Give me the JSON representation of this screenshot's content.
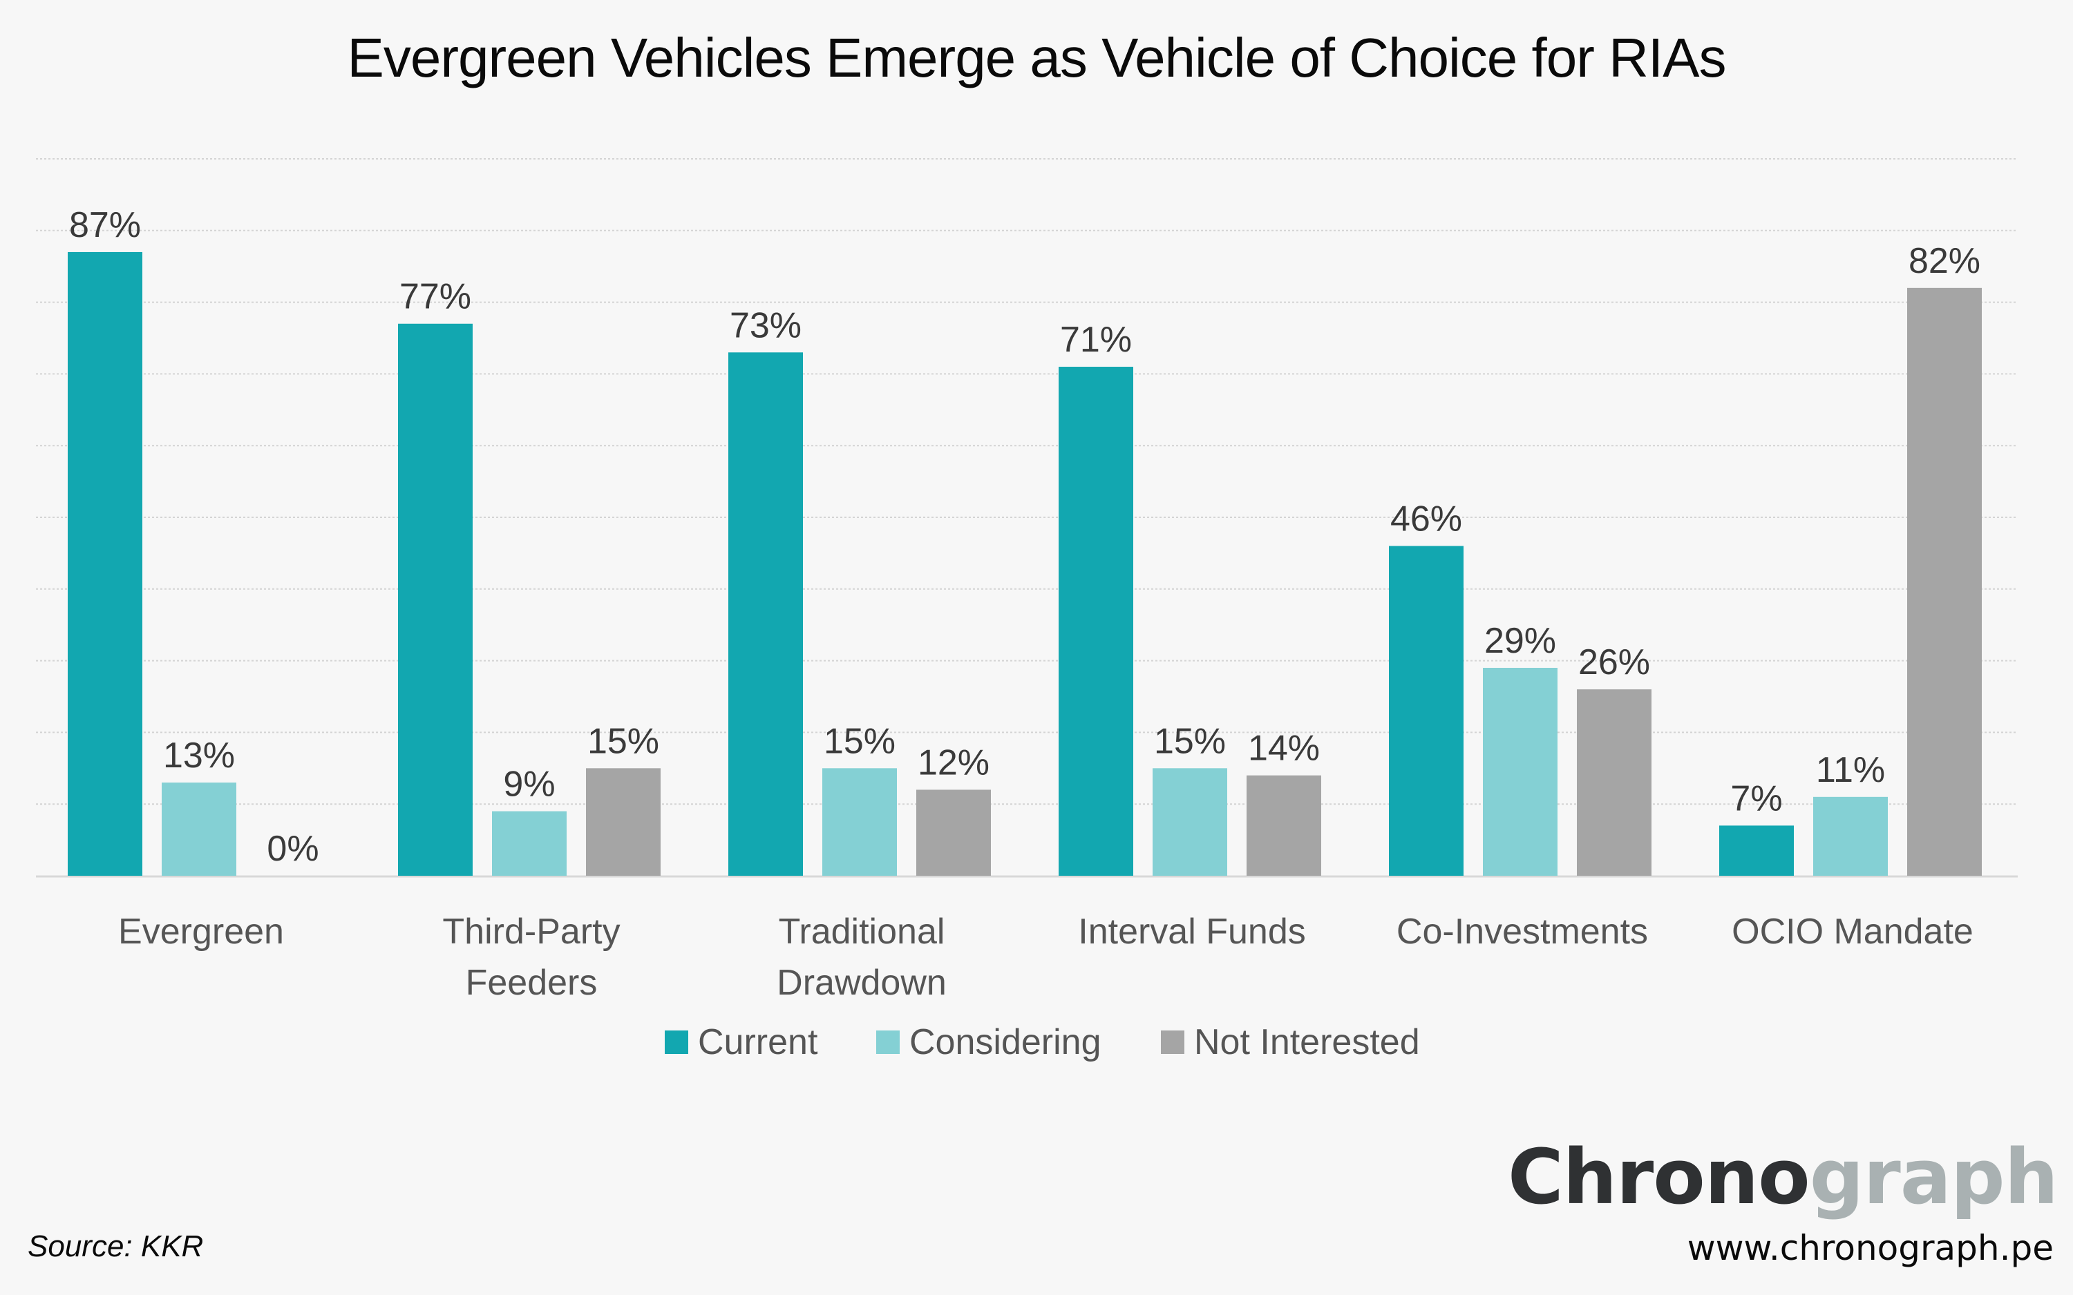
{
  "title": "Evergreen Vehicles Emerge as Vehicle of Choice for RIAs",
  "source": "Source: KKR",
  "brand": {
    "dark": "Chrono",
    "light": "graph",
    "url": "www.chronograph.pe"
  },
  "chart_data": {
    "type": "bar",
    "title": "Evergreen Vehicles Emerge as Vehicle of Choice for RIAs",
    "xlabel": "",
    "ylabel": "",
    "ylim": [
      0,
      100
    ],
    "grid": true,
    "grid_step": 10,
    "legend_position": "bottom",
    "categories": [
      [
        "Evergreen"
      ],
      [
        "Third-Party",
        "Feeders"
      ],
      [
        "Traditional",
        "Drawdown"
      ],
      [
        "Interval Funds"
      ],
      [
        "Co-Investments"
      ],
      [
        "OCIO Mandate"
      ]
    ],
    "series": [
      {
        "name": "Current",
        "color": "#12a7b0",
        "values": [
          87,
          77,
          73,
          71,
          46,
          7
        ]
      },
      {
        "name": "Considering",
        "color": "#84d0d4",
        "values": [
          13,
          9,
          15,
          15,
          29,
          11
        ]
      },
      {
        "name": "Not Interested",
        "color": "#a5a5a5",
        "values": [
          0,
          15,
          12,
          14,
          26,
          82
        ]
      }
    ],
    "value_format": "{v}%"
  }
}
